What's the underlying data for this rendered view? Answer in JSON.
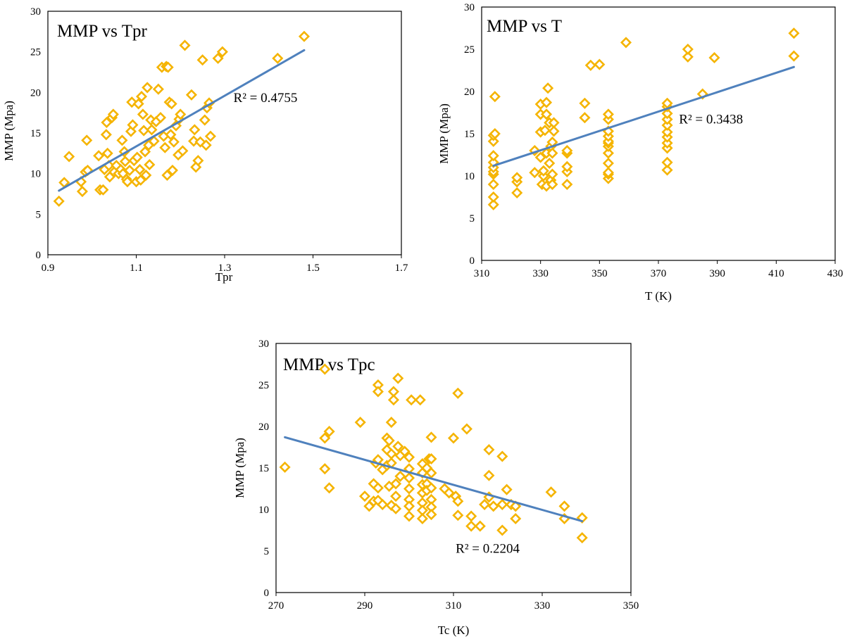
{
  "colors": {
    "marker": "#f5b400",
    "trendline": "#4f81bd"
  },
  "chart_data": [
    {
      "id": "tpr",
      "type": "scatter",
      "title": "MMP vs Tpr",
      "xlabel": "Tpr",
      "ylabel": "MMP (Mpa)",
      "xlim": [
        0.9,
        1.7
      ],
      "ylim": [
        0,
        30
      ],
      "xticks": [
        0.9,
        1.1,
        1.3,
        1.5,
        1.7
      ],
      "xtick_labels": [
        "0.9",
        "1.1",
        "1.3",
        "1.5",
        "1.7"
      ],
      "yticks": [
        0,
        5,
        10,
        15,
        20,
        25,
        30
      ],
      "ytick_labels": [
        "0",
        "5",
        "10",
        "15",
        "20",
        "25",
        "30"
      ],
      "r2_text": "R² = 0.4755",
      "r2_pos": [
        1.32,
        18.8
      ],
      "trendline": {
        "x": [
          0.925,
          1.48
        ],
        "y": [
          7.9,
          25.2
        ]
      },
      "points": [
        [
          0.925,
          6.6
        ],
        [
          0.937,
          8.9
        ],
        [
          0.948,
          12.1
        ],
        [
          0.975,
          9.0
        ],
        [
          0.978,
          7.8
        ],
        [
          0.985,
          10.2
        ],
        [
          0.988,
          14.1
        ],
        [
          0.99,
          10.4
        ],
        [
          1.015,
          12.2
        ],
        [
          1.018,
          8.0
        ],
        [
          1.025,
          8.0
        ],
        [
          1.028,
          10.5
        ],
        [
          1.032,
          14.8
        ],
        [
          1.033,
          16.3
        ],
        [
          1.035,
          12.5
        ],
        [
          1.038,
          11.0
        ],
        [
          1.04,
          9.6
        ],
        [
          1.045,
          16.9
        ],
        [
          1.048,
          17.3
        ],
        [
          1.05,
          10.2
        ],
        [
          1.055,
          11.0
        ],
        [
          1.06,
          10.0
        ],
        [
          1.065,
          10.5
        ],
        [
          1.068,
          14.1
        ],
        [
          1.07,
          10.0
        ],
        [
          1.073,
          12.7
        ],
        [
          1.075,
          11.5
        ],
        [
          1.078,
          9.3
        ],
        [
          1.08,
          9.0
        ],
        [
          1.085,
          10.4
        ],
        [
          1.088,
          15.2
        ],
        [
          1.09,
          18.8
        ],
        [
          1.092,
          16.0
        ],
        [
          1.095,
          11.6
        ],
        [
          1.1,
          9.0
        ],
        [
          1.102,
          12.0
        ],
        [
          1.105,
          18.6
        ],
        [
          1.108,
          10.5
        ],
        [
          1.11,
          9.2
        ],
        [
          1.112,
          19.5
        ],
        [
          1.115,
          17.3
        ],
        [
          1.117,
          15.3
        ],
        [
          1.12,
          12.7
        ],
        [
          1.122,
          9.8
        ],
        [
          1.125,
          20.6
        ],
        [
          1.128,
          13.5
        ],
        [
          1.13,
          11.1
        ],
        [
          1.133,
          16.6
        ],
        [
          1.135,
          15.4
        ],
        [
          1.14,
          14.0
        ],
        [
          1.145,
          16.4
        ],
        [
          1.15,
          20.4
        ],
        [
          1.155,
          16.9
        ],
        [
          1.158,
          23.1
        ],
        [
          1.162,
          14.6
        ],
        [
          1.165,
          13.2
        ],
        [
          1.168,
          23.2
        ],
        [
          1.17,
          9.8
        ],
        [
          1.172,
          23.1
        ],
        [
          1.175,
          18.8
        ],
        [
          1.178,
          14.8
        ],
        [
          1.18,
          18.6
        ],
        [
          1.182,
          10.4
        ],
        [
          1.185,
          13.9
        ],
        [
          1.19,
          15.9
        ],
        [
          1.195,
          12.3
        ],
        [
          1.197,
          16.7
        ],
        [
          1.2,
          17.3
        ],
        [
          1.205,
          12.8
        ],
        [
          1.21,
          25.8
        ],
        [
          1.225,
          19.7
        ],
        [
          1.23,
          14.0
        ],
        [
          1.232,
          15.4
        ],
        [
          1.235,
          10.8
        ],
        [
          1.24,
          11.6
        ],
        [
          1.245,
          13.9
        ],
        [
          1.25,
          24.0
        ],
        [
          1.255,
          16.6
        ],
        [
          1.258,
          13.5
        ],
        [
          1.26,
          18.1
        ],
        [
          1.265,
          18.7
        ],
        [
          1.268,
          14.6
        ],
        [
          1.285,
          24.2
        ],
        [
          1.295,
          25.0
        ],
        [
          1.42,
          24.2
        ],
        [
          1.48,
          26.9
        ]
      ]
    },
    {
      "id": "t",
      "type": "scatter",
      "title": "MMP vs T",
      "xlabel": "T (K)",
      "ylabel": "MMP (Mpa)",
      "xlim": [
        310,
        430
      ],
      "ylim": [
        0,
        30
      ],
      "xticks": [
        310,
        330,
        350,
        370,
        390,
        410,
        430
      ],
      "xtick_labels": [
        "310",
        "330",
        "350",
        "370",
        "390",
        "410",
        "430"
      ],
      "yticks": [
        0,
        5,
        10,
        15,
        20,
        25,
        30
      ],
      "ytick_labels": [
        "0",
        "5",
        "10",
        "15",
        "20",
        "25",
        "30"
      ],
      "r2_text": "R² = 0.3438",
      "r2_pos": [
        377,
        16.2
      ],
      "trendline": {
        "x": [
          314,
          416
        ],
        "y": [
          11.2,
          22.9
        ]
      },
      "points": [
        [
          314,
          6.6
        ],
        [
          314,
          7.5
        ],
        [
          314,
          9.0
        ],
        [
          314,
          10.2
        ],
        [
          314,
          10.5
        ],
        [
          314,
          11.0
        ],
        [
          314,
          11.6
        ],
        [
          314,
          12.4
        ],
        [
          314,
          14.1
        ],
        [
          314,
          14.8
        ],
        [
          314.5,
          19.4
        ],
        [
          314.5,
          15.0
        ],
        [
          322,
          8.0
        ],
        [
          322,
          9.3
        ],
        [
          322,
          9.8
        ],
        [
          328,
          10.4
        ],
        [
          328,
          13.0
        ],
        [
          330,
          12.2
        ],
        [
          330,
          15.2
        ],
        [
          330,
          17.3
        ],
        [
          330,
          18.5
        ],
        [
          330.5,
          9.0
        ],
        [
          331,
          10.0
        ],
        [
          331,
          10.6
        ],
        [
          331.5,
          15.4
        ],
        [
          332,
          18.7
        ],
        [
          332,
          17.3
        ],
        [
          332,
          12.7
        ],
        [
          332,
          8.8
        ],
        [
          332.5,
          20.4
        ],
        [
          333,
          16.3
        ],
        [
          333,
          11.5
        ],
        [
          333.5,
          13.5
        ],
        [
          333.5,
          9.5
        ],
        [
          334,
          14.0
        ],
        [
          334,
          12.7
        ],
        [
          334,
          10.2
        ],
        [
          334,
          9.0
        ],
        [
          334.5,
          16.3
        ],
        [
          334.5,
          15.3
        ],
        [
          339,
          9.0
        ],
        [
          339,
          10.5
        ],
        [
          339,
          11.1
        ],
        [
          339,
          12.7
        ],
        [
          339,
          13.0
        ],
        [
          345,
          16.9
        ],
        [
          345,
          18.6
        ],
        [
          347,
          23.1
        ],
        [
          350,
          23.2
        ],
        [
          353,
          9.7
        ],
        [
          353,
          10.2
        ],
        [
          353,
          10.4
        ],
        [
          353,
          11.5
        ],
        [
          353,
          12.7
        ],
        [
          353,
          13.5
        ],
        [
          353,
          13.9
        ],
        [
          353,
          14.1
        ],
        [
          353,
          14.7
        ],
        [
          353,
          15.3
        ],
        [
          353,
          16.7
        ],
        [
          353,
          17.3
        ],
        [
          359,
          25.8
        ],
        [
          373,
          10.7
        ],
        [
          373,
          11.6
        ],
        [
          373,
          13.3
        ],
        [
          373,
          13.9
        ],
        [
          373,
          14.6
        ],
        [
          373,
          15.2
        ],
        [
          373,
          16.0
        ],
        [
          373,
          16.7
        ],
        [
          373,
          17.4
        ],
        [
          373,
          18.2
        ],
        [
          373,
          18.6
        ],
        [
          380,
          24.1
        ],
        [
          380,
          25.0
        ],
        [
          385,
          19.7
        ],
        [
          389,
          24.0
        ],
        [
          416,
          24.2
        ],
        [
          416,
          26.9
        ]
      ]
    },
    {
      "id": "tc",
      "type": "scatter",
      "title": "MMP vs Tpc",
      "xlabel": "Tc (K)",
      "ylabel": "MMP (Mpa)",
      "xlim": [
        270,
        350
      ],
      "ylim": [
        0,
        30
      ],
      "xticks": [
        270,
        290,
        310,
        330,
        350
      ],
      "xtick_labels": [
        "270",
        "290",
        "310",
        "330",
        "350"
      ],
      "yticks": [
        0,
        5,
        10,
        15,
        20,
        25,
        30
      ],
      "ytick_labels": [
        "0",
        "5",
        "10",
        "15",
        "20",
        "25",
        "30"
      ],
      "r2_text": "R² = 0.2204",
      "r2_pos": [
        310.5,
        4.8
      ],
      "trendline": {
        "x": [
          272,
          339
        ],
        "y": [
          18.7,
          8.6
        ]
      },
      "points": [
        [
          272,
          15.1
        ],
        [
          281,
          26.9
        ],
        [
          281,
          18.6
        ],
        [
          281,
          14.9
        ],
        [
          282,
          19.4
        ],
        [
          282,
          12.6
        ],
        [
          289,
          20.5
        ],
        [
          290,
          11.6
        ],
        [
          291,
          10.4
        ],
        [
          292,
          11.0
        ],
        [
          292,
          13.1
        ],
        [
          292.5,
          15.6
        ],
        [
          293,
          25.0
        ],
        [
          293,
          24.2
        ],
        [
          293,
          16.0
        ],
        [
          293,
          12.6
        ],
        [
          293,
          11.1
        ],
        [
          294,
          10.6
        ],
        [
          294,
          14.8
        ],
        [
          295,
          18.6
        ],
        [
          295,
          17.2
        ],
        [
          295,
          15.3
        ],
        [
          295.5,
          18.3
        ],
        [
          295.5,
          12.8
        ],
        [
          296,
          20.5
        ],
        [
          296,
          16.7
        ],
        [
          296,
          15.6
        ],
        [
          296,
          10.5
        ],
        [
          296.5,
          24.2
        ],
        [
          296.5,
          23.2
        ],
        [
          297,
          13.1
        ],
        [
          297,
          11.6
        ],
        [
          297,
          10.1
        ],
        [
          297.5,
          25.8
        ],
        [
          297.5,
          17.6
        ],
        [
          298,
          16.5
        ],
        [
          298,
          14.0
        ],
        [
          299,
          17.0
        ],
        [
          300,
          16.3
        ],
        [
          300,
          14.9
        ],
        [
          300,
          13.8
        ],
        [
          300,
          12.5
        ],
        [
          300,
          11.2
        ],
        [
          300,
          10.4
        ],
        [
          300,
          9.2
        ],
        [
          300.5,
          23.2
        ],
        [
          302.5,
          23.2
        ],
        [
          303,
          15.5
        ],
        [
          303,
          14.4
        ],
        [
          303,
          13.0
        ],
        [
          303,
          12.0
        ],
        [
          303,
          10.8
        ],
        [
          303,
          9.9
        ],
        [
          303,
          8.9
        ],
        [
          304,
          15.0
        ],
        [
          304,
          13.1
        ],
        [
          304,
          12.3
        ],
        [
          304.5,
          16.1
        ],
        [
          305,
          18.7
        ],
        [
          305,
          16.1
        ],
        [
          305,
          14.4
        ],
        [
          305,
          12.6
        ],
        [
          305,
          11.2
        ],
        [
          305,
          10.3
        ],
        [
          305,
          9.4
        ],
        [
          308,
          12.5
        ],
        [
          309,
          12.0
        ],
        [
          310,
          18.6
        ],
        [
          310.5,
          11.6
        ],
        [
          311,
          24.0
        ],
        [
          311,
          11.0
        ],
        [
          311,
          9.3
        ],
        [
          313,
          19.7
        ],
        [
          314,
          9.2
        ],
        [
          314,
          8.0
        ],
        [
          316,
          8.0
        ],
        [
          317,
          10.6
        ],
        [
          318,
          17.2
        ],
        [
          318,
          14.1
        ],
        [
          318,
          11.5
        ],
        [
          319,
          10.4
        ],
        [
          321,
          16.4
        ],
        [
          321,
          10.6
        ],
        [
          321,
          7.5
        ],
        [
          322,
          12.4
        ],
        [
          323,
          10.6
        ],
        [
          324,
          10.4
        ],
        [
          324,
          8.9
        ],
        [
          332,
          12.1
        ],
        [
          335,
          10.4
        ],
        [
          335,
          8.9
        ],
        [
          339,
          9.0
        ],
        [
          339,
          6.6
        ]
      ]
    }
  ]
}
